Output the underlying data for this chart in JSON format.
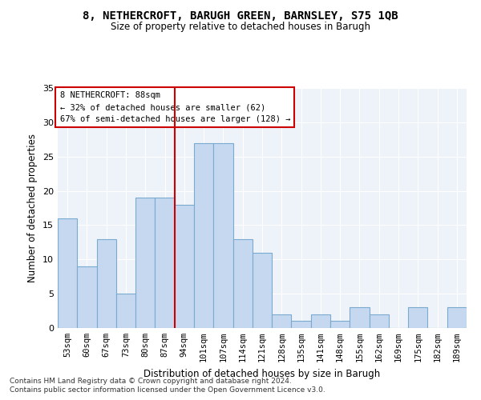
{
  "title1": "8, NETHERCROFT, BARUGH GREEN, BARNSLEY, S75 1QB",
  "title2": "Size of property relative to detached houses in Barugh",
  "xlabel": "Distribution of detached houses by size in Barugh",
  "ylabel": "Number of detached properties",
  "categories": [
    "53sqm",
    "60sqm",
    "67sqm",
    "73sqm",
    "80sqm",
    "87sqm",
    "94sqm",
    "101sqm",
    "107sqm",
    "114sqm",
    "121sqm",
    "128sqm",
    "135sqm",
    "141sqm",
    "148sqm",
    "155sqm",
    "162sqm",
    "169sqm",
    "175sqm",
    "182sqm",
    "189sqm"
  ],
  "values": [
    16,
    9,
    13,
    5,
    19,
    19,
    18,
    27,
    27,
    13,
    11,
    2,
    1,
    2,
    1,
    3,
    2,
    0,
    3,
    0,
    3
  ],
  "bar_color": "#c5d8f0",
  "bar_edge_color": "#7aaad0",
  "vline_index": 5,
  "vline_color": "#cc0000",
  "annotation_line1": "8 NETHERCROFT: 88sqm",
  "annotation_line2": "← 32% of detached houses are smaller (62)",
  "annotation_line3": "67% of semi-detached houses are larger (128) →",
  "annotation_box_color": "#ffffff",
  "annotation_box_edge": "#cc0000",
  "ylim": [
    0,
    35
  ],
  "yticks": [
    0,
    5,
    10,
    15,
    20,
    25,
    30,
    35
  ],
  "footnote1": "Contains HM Land Registry data © Crown copyright and database right 2024.",
  "footnote2": "Contains public sector information licensed under the Open Government Licence v3.0.",
  "background_color": "#eef2f9"
}
